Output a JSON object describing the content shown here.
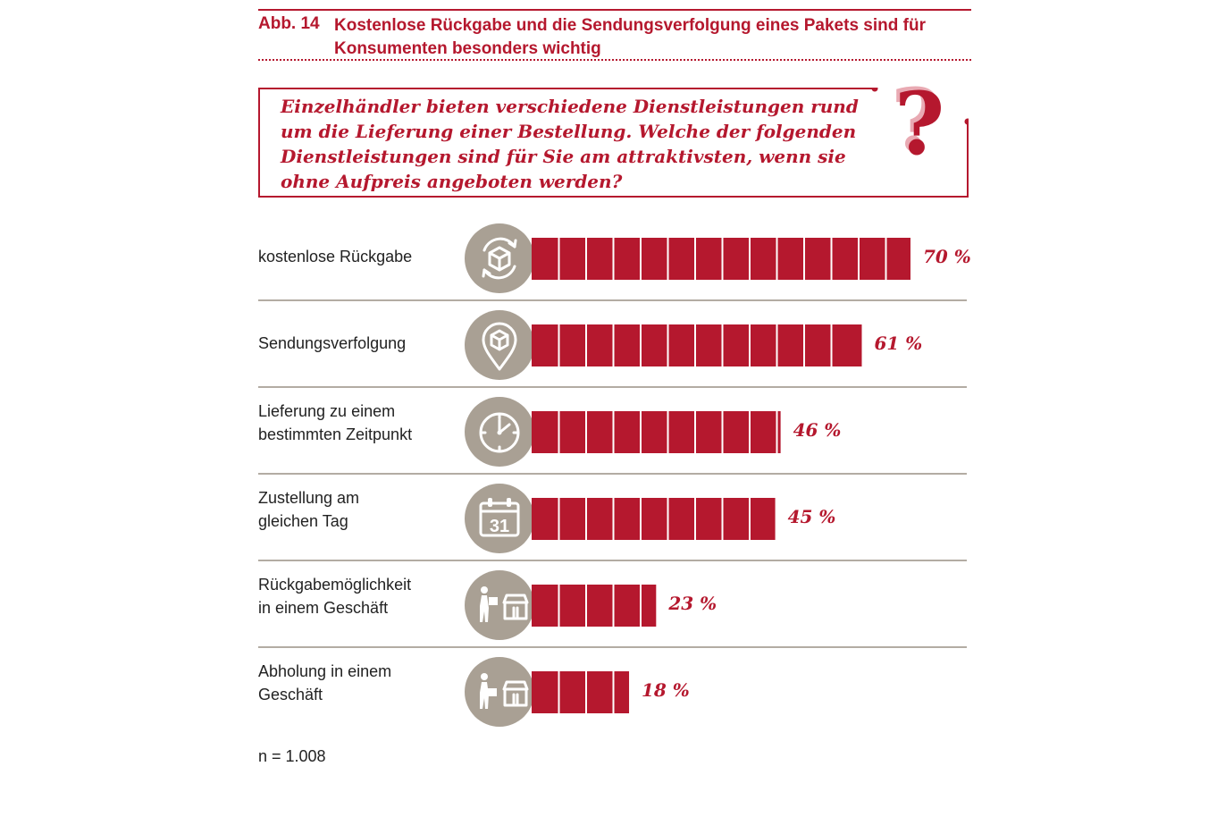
{
  "header": {
    "figure_number": "Abb. 14",
    "title": "Kostenlose Rückgabe und die Sendungsverfolgung eines Pakets sind für Konsumenten besonders wichtig"
  },
  "question": {
    "text": "Einzelhändler bieten verschiedene Dienstleistungen rund um die Lieferung einer Bestellung. Welche der folgenden Dienstleistungen sind für Sie am attraktivsten, wenn sie ohne Aufpreis angeboten werden?",
    "mark": "?"
  },
  "colors": {
    "accent": "#b5182e",
    "icon_bg": "#a9a094",
    "separator": "#b3aca3"
  },
  "chart_data": {
    "type": "bar",
    "orientation": "horizontal",
    "unit": "%",
    "categories": [
      "kostenlose Rückgabe",
      "Sendungsverfolgung",
      "Lieferung zu einem bestimmten Zeitpunkt",
      "Zustellung am gleichen Tag",
      "Rückgabemöglichkeit in einem Geschäft",
      "Abholung in einem Geschäft"
    ],
    "values": [
      70,
      61,
      46,
      45,
      23,
      18
    ],
    "value_labels": [
      "70 %",
      "61 %",
      "46 %",
      "45 %",
      "23 %",
      "18 %"
    ],
    "icons": [
      "box-return-icon",
      "location-pin-box-icon",
      "clock-icon",
      "calendar-31-icon",
      "person-to-store-icon",
      "person-from-store-icon"
    ],
    "xlim": [
      0,
      100
    ]
  },
  "note": "n = 1.008"
}
